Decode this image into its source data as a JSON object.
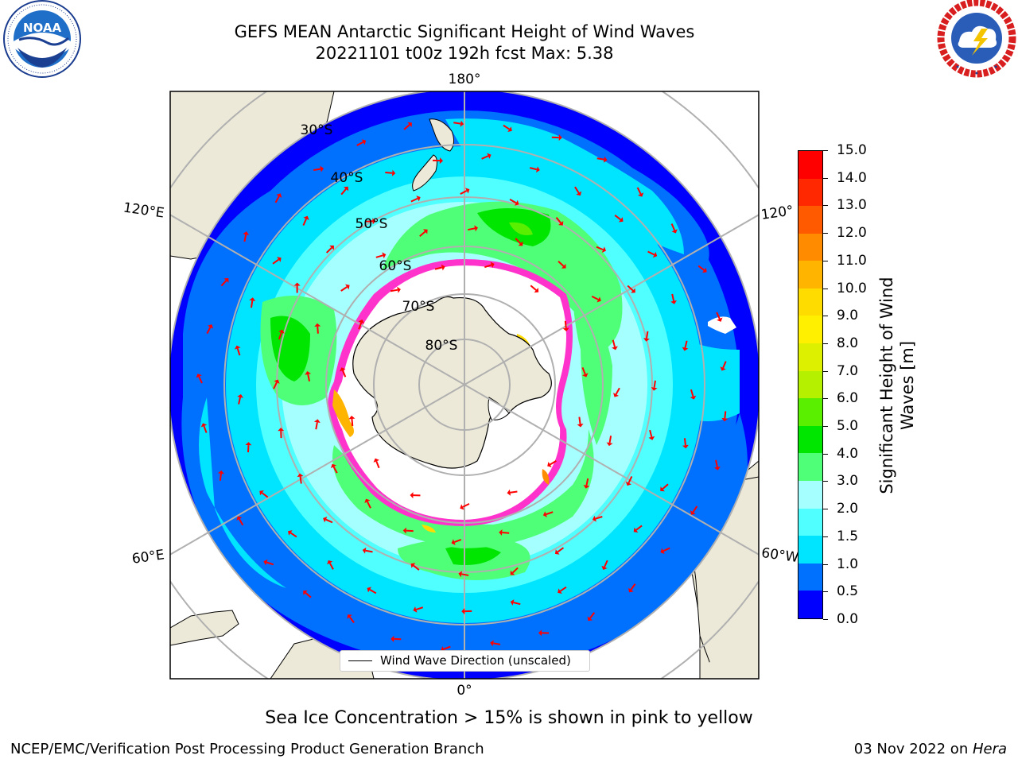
{
  "header": {
    "title_line1": "GEFS MEAN Antarctic Significant Height of Wind Waves",
    "title_line2": "20221101 t00z 192h fcst   Max: 5.38"
  },
  "logos": {
    "noaa": {
      "text": "NOAA",
      "ring_text": "NATIONAL OCEANIC AND ATMOSPHERIC ADMINISTRATION · U.S. DEPARTMENT OF COMMERCE"
    },
    "nws": {
      "ring_text": "NATIONAL WEATHER SERVICE"
    }
  },
  "map": {
    "projection": "south-polar-stereographic",
    "longitude_labels": {
      "top": "180°",
      "bottom": "0°",
      "upper_left": "120°E",
      "lower_left": "60°E",
      "upper_right": "120°",
      "lower_right": "60°W"
    },
    "latitude_labels": [
      "30°S",
      "40°S",
      "50°S",
      "60°S",
      "70°S",
      "80°S"
    ],
    "colors": {
      "land": "#ece9d8",
      "ice_free_ocean_near_pole": "#ffffff",
      "graticule": "#b0b0b0",
      "coastline": "#000000",
      "arrow": "#ff0000",
      "sea_ice": "#ff33cc"
    }
  },
  "legend": {
    "label": "Wind Wave Direction (unscaled)"
  },
  "colorbar": {
    "title_line1": "Significant Height of Wind",
    "title_line2": "Waves [m]",
    "ticks": [
      "0.0",
      "0.5",
      "1.0",
      "1.5",
      "2.0",
      "3.0",
      "4.0",
      "5.0",
      "6.0",
      "7.0",
      "8.0",
      "9.0",
      "10.0",
      "11.0",
      "12.0",
      "13.0",
      "14.0",
      "15.0"
    ],
    "colors": [
      "#0000ff",
      "#0070ff",
      "#00e5ff",
      "#50ffff",
      "#a6ffff",
      "#50ff78",
      "#00e600",
      "#5aee00",
      "#b4f000",
      "#dcf000",
      "#fff000",
      "#ffdc00",
      "#ffb400",
      "#ff8c00",
      "#ff5a00",
      "#ff2800",
      "#ff0000"
    ]
  },
  "caption": "Sea Ice Concentration > 15% is shown in pink to yellow",
  "footer": {
    "left": "NCEP/EMC/Verification Post Processing Product Generation Branch",
    "right_prefix": "03 Nov 2022 on ",
    "right_host": "Hera"
  }
}
